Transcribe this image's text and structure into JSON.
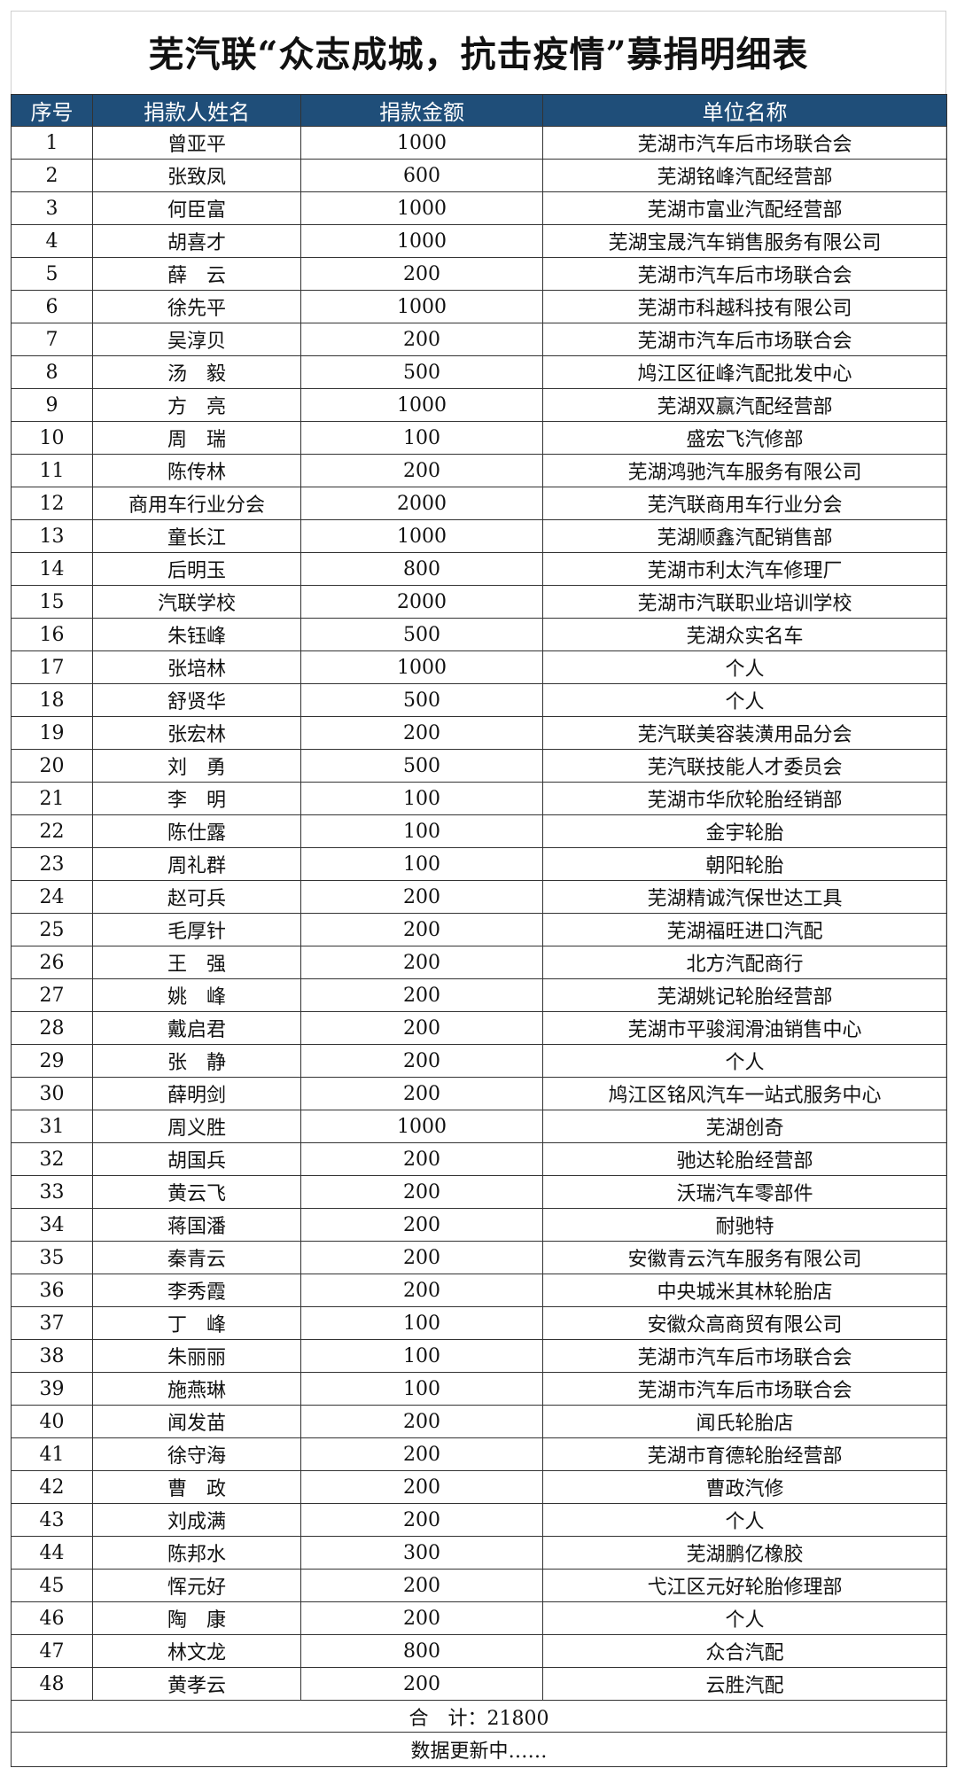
{
  "title": "芜汽联“众志成城，抗击疫情”募捐明细表",
  "header_color": "#1f4e79",
  "columns": [
    "序号",
    "捐款人姓名",
    "捐款金额",
    "单位名称"
  ],
  "rows": [
    [
      "1",
      "曾亚平",
      "1000",
      "芜湖市汽车后市场联合会"
    ],
    [
      "2",
      "张致凤",
      "600",
      "芜湖铭峰汽配经营部"
    ],
    [
      "3",
      "何臣富",
      "1000",
      "芜湖市富业汽配经营部"
    ],
    [
      "4",
      "胡喜才",
      "1000",
      "芜湖宝晟汽车销售服务有限公司"
    ],
    [
      "5",
      "薛　云",
      "200",
      "芜湖市汽车后市场联合会"
    ],
    [
      "6",
      "徐先平",
      "1000",
      "芜湖市科越科技有限公司"
    ],
    [
      "7",
      "吴淳贝",
      "200",
      "芜湖市汽车后市场联合会"
    ],
    [
      "8",
      "汤　毅",
      "500",
      "鸠江区征峰汽配批发中心"
    ],
    [
      "9",
      "方　亮",
      "1000",
      "芜湖双赢汽配经营部"
    ],
    [
      "10",
      "周　瑞",
      "100",
      "盛宏飞汽修部"
    ],
    [
      "11",
      "陈传林",
      "200",
      "芜湖鸿驰汽车服务有限公司"
    ],
    [
      "12",
      "商用车行业分会",
      "2000",
      "芜汽联商用车行业分会"
    ],
    [
      "13",
      "童长江",
      "1000",
      "芜湖顺鑫汽配销售部"
    ],
    [
      "14",
      "后明玉",
      "800",
      "芜湖市利太汽车修理厂"
    ],
    [
      "15",
      "汽联学校",
      "2000",
      "芜湖市汽联职业培训学校"
    ],
    [
      "16",
      "朱钰峰",
      "500",
      "芜湖众实名车"
    ],
    [
      "17",
      "张培林",
      "1000",
      "个人"
    ],
    [
      "18",
      "舒贤华",
      "500",
      "个人"
    ],
    [
      "19",
      "张宏林",
      "200",
      "芜汽联美容装潢用品分会"
    ],
    [
      "20",
      "刘　勇",
      "500",
      "芜汽联技能人才委员会"
    ],
    [
      "21",
      "李　明",
      "100",
      "芜湖市华欣轮胎经销部"
    ],
    [
      "22",
      "陈仕露",
      "100",
      "金宇轮胎"
    ],
    [
      "23",
      "周礼群",
      "100",
      "朝阳轮胎"
    ],
    [
      "24",
      "赵可兵",
      "200",
      "芜湖精诚汽保世达工具"
    ],
    [
      "25",
      "毛厚针",
      "200",
      "芜湖福旺进口汽配"
    ],
    [
      "26",
      "王　强",
      "200",
      "北方汽配商行"
    ],
    [
      "27",
      "姚　峰",
      "200",
      "芜湖姚记轮胎经营部"
    ],
    [
      "28",
      "戴启君",
      "200",
      "芜湖市平骏润滑油销售中心"
    ],
    [
      "29",
      "张　静",
      "200",
      "个人"
    ],
    [
      "30",
      "薛明剑",
      "200",
      "鸠江区铭风汽车一站式服务中心"
    ],
    [
      "31",
      "周义胜",
      "1000",
      "芜湖创奇"
    ],
    [
      "32",
      "胡国兵",
      "200",
      "驰达轮胎经营部"
    ],
    [
      "33",
      "黄云飞",
      "200",
      "沃瑞汽车零部件"
    ],
    [
      "34",
      "蒋国潘",
      "200",
      "耐驰特"
    ],
    [
      "35",
      "秦青云",
      "200",
      "安徽青云汽车服务有限公司"
    ],
    [
      "36",
      "李秀霞",
      "200",
      "中央城米其林轮胎店"
    ],
    [
      "37",
      "丁　峰",
      "100",
      "安徽众高商贸有限公司"
    ],
    [
      "38",
      "朱丽丽",
      "100",
      "芜湖市汽车后市场联合会"
    ],
    [
      "39",
      "施燕琳",
      "100",
      "芜湖市汽车后市场联合会"
    ],
    [
      "40",
      "闻发苗",
      "200",
      "闻氏轮胎店"
    ],
    [
      "41",
      "徐守海",
      "200",
      "芜湖市育德轮胎经营部"
    ],
    [
      "42",
      "曹　政",
      "200",
      "曹政汽修"
    ],
    [
      "43",
      "刘成满",
      "200",
      "个人"
    ],
    [
      "44",
      "陈邦水",
      "300",
      "芜湖鹏亿橡胶"
    ],
    [
      "45",
      "恽元好",
      "200",
      "弋江区元好轮胎修理部"
    ],
    [
      "46",
      "陶　康",
      "200",
      "个人"
    ],
    [
      "47",
      "林文龙",
      "800",
      "众合汽配"
    ],
    [
      "48",
      "黄孝云",
      "200",
      "云胜汽配"
    ]
  ],
  "total": "合　计：21800",
  "footer_note": "数据更新中……"
}
